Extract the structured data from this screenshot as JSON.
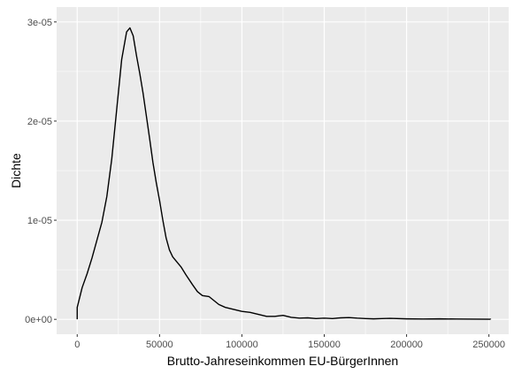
{
  "chart_data": {
    "type": "line",
    "xlabel": "Brutto-Jahreseinkommen EU-BürgerInnen",
    "ylabel": "Dichte",
    "xlim": [
      -12500,
      262000
    ],
    "ylim": [
      -1.5e-06,
      3.15e-05
    ],
    "x_ticks": [
      {
        "value": 0,
        "label": "0"
      },
      {
        "value": 50000,
        "label": "50000"
      },
      {
        "value": 100000,
        "label": "100000"
      },
      {
        "value": 150000,
        "label": "150000"
      },
      {
        "value": 200000,
        "label": "200000"
      },
      {
        "value": 250000,
        "label": "250000"
      }
    ],
    "y_ticks": [
      {
        "value": 0,
        "label": "0e+00"
      },
      {
        "value": 1e-05,
        "label": "1e-05"
      },
      {
        "value": 2e-05,
        "label": "2e-05"
      },
      {
        "value": 3e-05,
        "label": "3e-05"
      }
    ],
    "grid": true,
    "series": [
      {
        "x": [
          0,
          0,
          3000,
          6000,
          9000,
          12000,
          15000,
          18000,
          21000,
          24000,
          27000,
          30000,
          32000,
          34000,
          36000,
          38000,
          40000,
          42000,
          44000,
          46000,
          48000,
          50000,
          52000,
          54000,
          56000,
          58000,
          60000,
          63000,
          66000,
          70000,
          73000,
          76000,
          80000,
          83000,
          86000,
          90000,
          95000,
          100000,
          105000,
          110000,
          115000,
          120000,
          125000,
          130000,
          135000,
          140000,
          145000,
          150000,
          155000,
          160000,
          165000,
          170000,
          175000,
          180000,
          185000,
          190000,
          200000,
          210000,
          220000,
          230000,
          240000,
          251000,
          251000
        ],
        "y": [
          0,
          1.2e-06,
          3.2e-06,
          4.6e-06,
          6.2e-06,
          8e-06,
          9.8e-06,
          1.24e-05,
          1.62e-05,
          2.12e-05,
          2.62e-05,
          2.9e-05,
          2.94e-05,
          2.86e-05,
          2.66e-05,
          2.48e-05,
          2.28e-05,
          2.05e-05,
          1.82e-05,
          1.58e-05,
          1.38e-05,
          1.2e-05,
          1e-05,
          8.2e-06,
          7e-06,
          6.3e-06,
          5.9e-06,
          5.3e-06,
          4.5e-06,
          3.5e-06,
          2.8e-06,
          2.4e-06,
          2.3e-06,
          1.9e-06,
          1.5e-06,
          1.2e-06,
          1e-06,
          8e-07,
          7e-07,
          5e-07,
          3e-07,
          3e-07,
          4e-07,
          2e-07,
          1.2e-07,
          1.5e-07,
          8e-08,
          1.2e-07,
          8e-08,
          1.5e-07,
          1.8e-07,
          1.2e-07,
          8e-08,
          5e-08,
          8e-08,
          1e-07,
          5e-08,
          3e-08,
          5e-08,
          3e-08,
          2e-08,
          1e-08,
          0
        ]
      }
    ]
  }
}
